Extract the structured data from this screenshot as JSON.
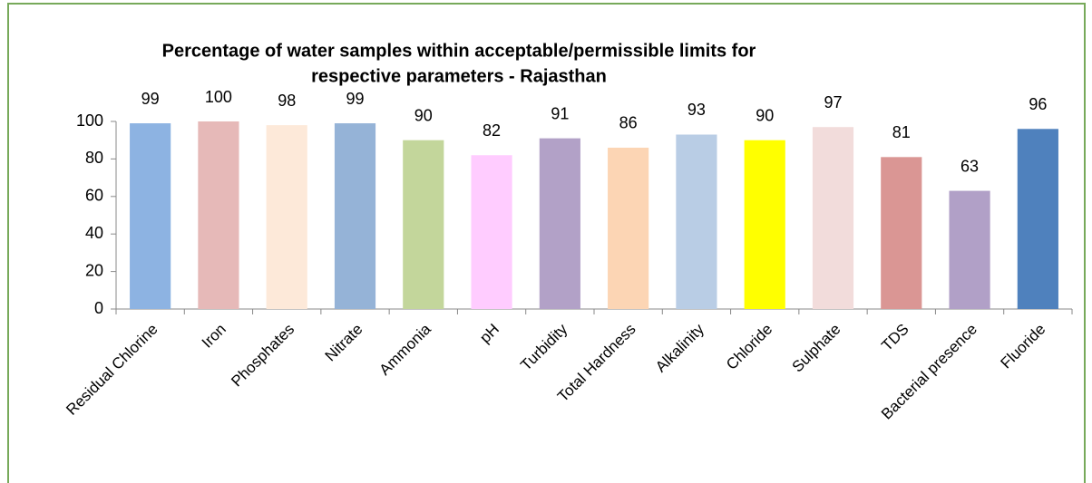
{
  "chart_data": {
    "type": "bar",
    "title": [
      "Percentage of water samples within acceptable/permissible limits for",
      "respective parameters - Rajasthan"
    ],
    "categories": [
      "Residual Chlorine",
      "Iron",
      "Phosphates",
      "Nitrate",
      "Ammonia",
      "pH",
      "Turbidity",
      "Total Hardness",
      "Alkalinity",
      "Chloride",
      "Sulphate",
      "TDS",
      "Bacterial presence",
      "Fluoride"
    ],
    "values": [
      99,
      100,
      98,
      99,
      90,
      82,
      91,
      86,
      93,
      90,
      97,
      81,
      63,
      96
    ],
    "colors": [
      "#8db3e2",
      "#e6b9b8",
      "#fde9d9",
      "#95b3d7",
      "#c3d69b",
      "#ffccff",
      "#b2a1c7",
      "#fcd5b4",
      "#b9cde5",
      "#ffff00",
      "#f2dcdb",
      "#da9694",
      "#b1a0c7",
      "#4f81bd"
    ],
    "ylim": [
      0,
      100
    ],
    "yticks": [
      0,
      20,
      40,
      60,
      80,
      100
    ],
    "grid": false
  }
}
